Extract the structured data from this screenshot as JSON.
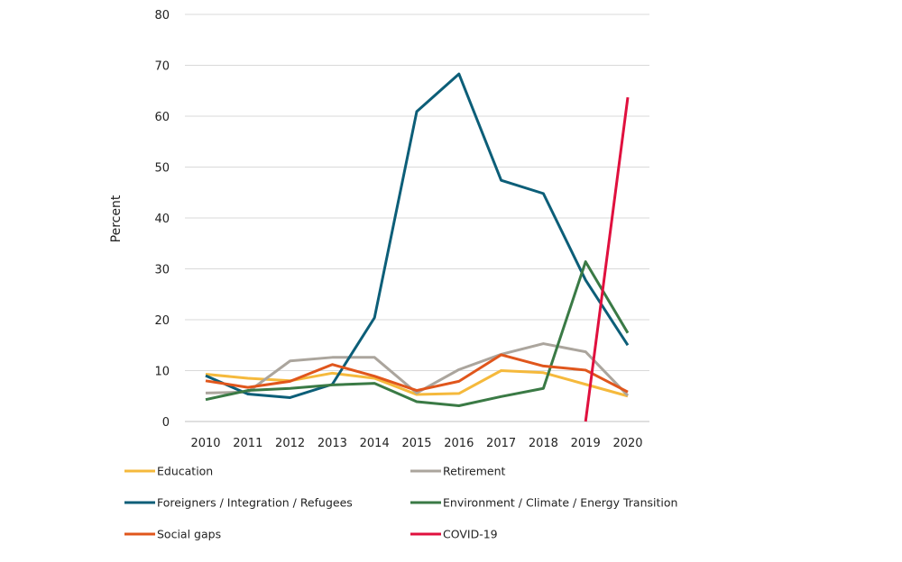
{
  "chart_data": {
    "type": "line",
    "title": "",
    "xlabel": "",
    "ylabel": "Percent",
    "x": [
      2010,
      2011,
      2012,
      2013,
      2014,
      2015,
      2016,
      2017,
      2018,
      2019,
      2020
    ],
    "ylim": [
      0,
      80
    ],
    "yticks": [
      0,
      10,
      20,
      30,
      40,
      50,
      60,
      70,
      80
    ],
    "grid": "horizontal",
    "legend_position": "bottom",
    "series": [
      {
        "name": "Education",
        "color": "#F5B93C",
        "values": [
          9.3,
          8.5,
          8.0,
          9.5,
          8.5,
          5.3,
          5.5,
          10.0,
          9.6,
          7.3,
          5.0
        ]
      },
      {
        "name": "Retirement",
        "color": "#ABA59D",
        "values": [
          5.6,
          5.8,
          11.9,
          12.6,
          12.6,
          5.6,
          10.2,
          13.2,
          15.3,
          13.7,
          5.1
        ]
      },
      {
        "name": "Foreigners / Integration / Refugees",
        "color": "#0C5E78",
        "values": [
          9.0,
          5.4,
          4.7,
          7.3,
          20.4,
          60.9,
          68.3,
          47.4,
          44.8,
          27.8,
          15.0
        ]
      },
      {
        "name": "Environment / Climate / Energy Transition",
        "color": "#3A7A45",
        "values": [
          4.3,
          6.1,
          6.5,
          7.2,
          7.5,
          3.9,
          3.1,
          4.9,
          6.5,
          31.4,
          17.4
        ]
      },
      {
        "name": "Social gaps",
        "color": "#E0561C",
        "values": [
          8.0,
          6.7,
          7.9,
          11.2,
          8.9,
          6.1,
          7.9,
          13.1,
          10.9,
          10.1,
          5.8
        ]
      },
      {
        "name": "COVID-19",
        "color": "#E0103E",
        "values": [
          null,
          null,
          null,
          null,
          null,
          null,
          null,
          null,
          null,
          0.0,
          63.7
        ]
      }
    ]
  }
}
